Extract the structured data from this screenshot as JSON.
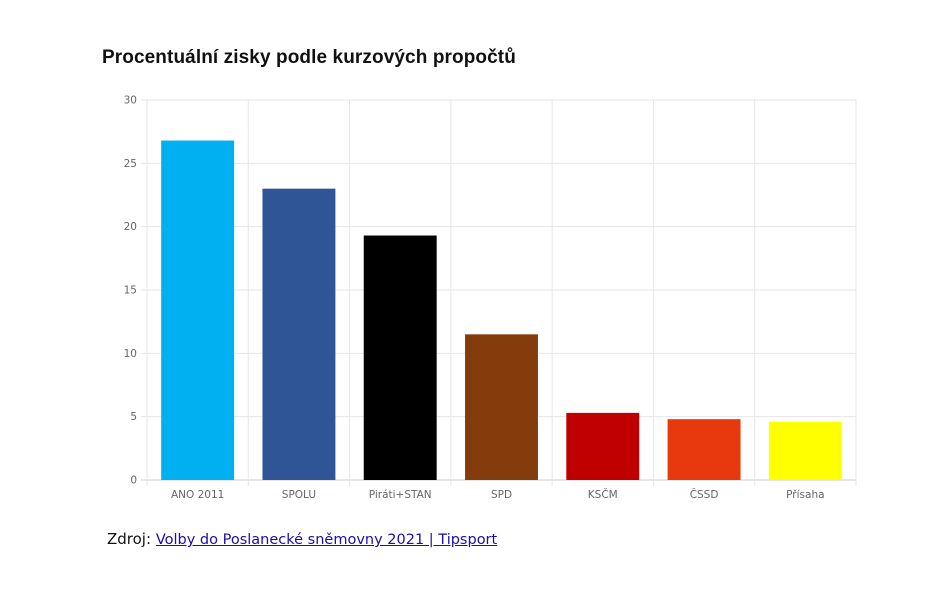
{
  "chart_data": {
    "type": "bar",
    "title": "Procentuální zisky podle kurzových propočtů",
    "categories": [
      "ANO 2011",
      "SPOLU",
      "Piráti+STAN",
      "SPD",
      "KSČM",
      "ČSSD",
      "Přísaha"
    ],
    "values": [
      26.8,
      23.0,
      19.3,
      11.5,
      5.3,
      4.8,
      4.6
    ],
    "colors": [
      "#00b0f0",
      "#2f5597",
      "#000000",
      "#843c0c",
      "#c00000",
      "#e8380d",
      "#ffff00"
    ],
    "ylim": [
      0,
      30
    ],
    "yticks": [
      0,
      5,
      10,
      15,
      20,
      25,
      30
    ],
    "grid": true,
    "legend": "none",
    "xlabel": "",
    "ylabel": ""
  },
  "source": {
    "label": "Zdroj:",
    "link_text": "Volby do Poslanecké sněmovny 2021 | Tipsport"
  }
}
